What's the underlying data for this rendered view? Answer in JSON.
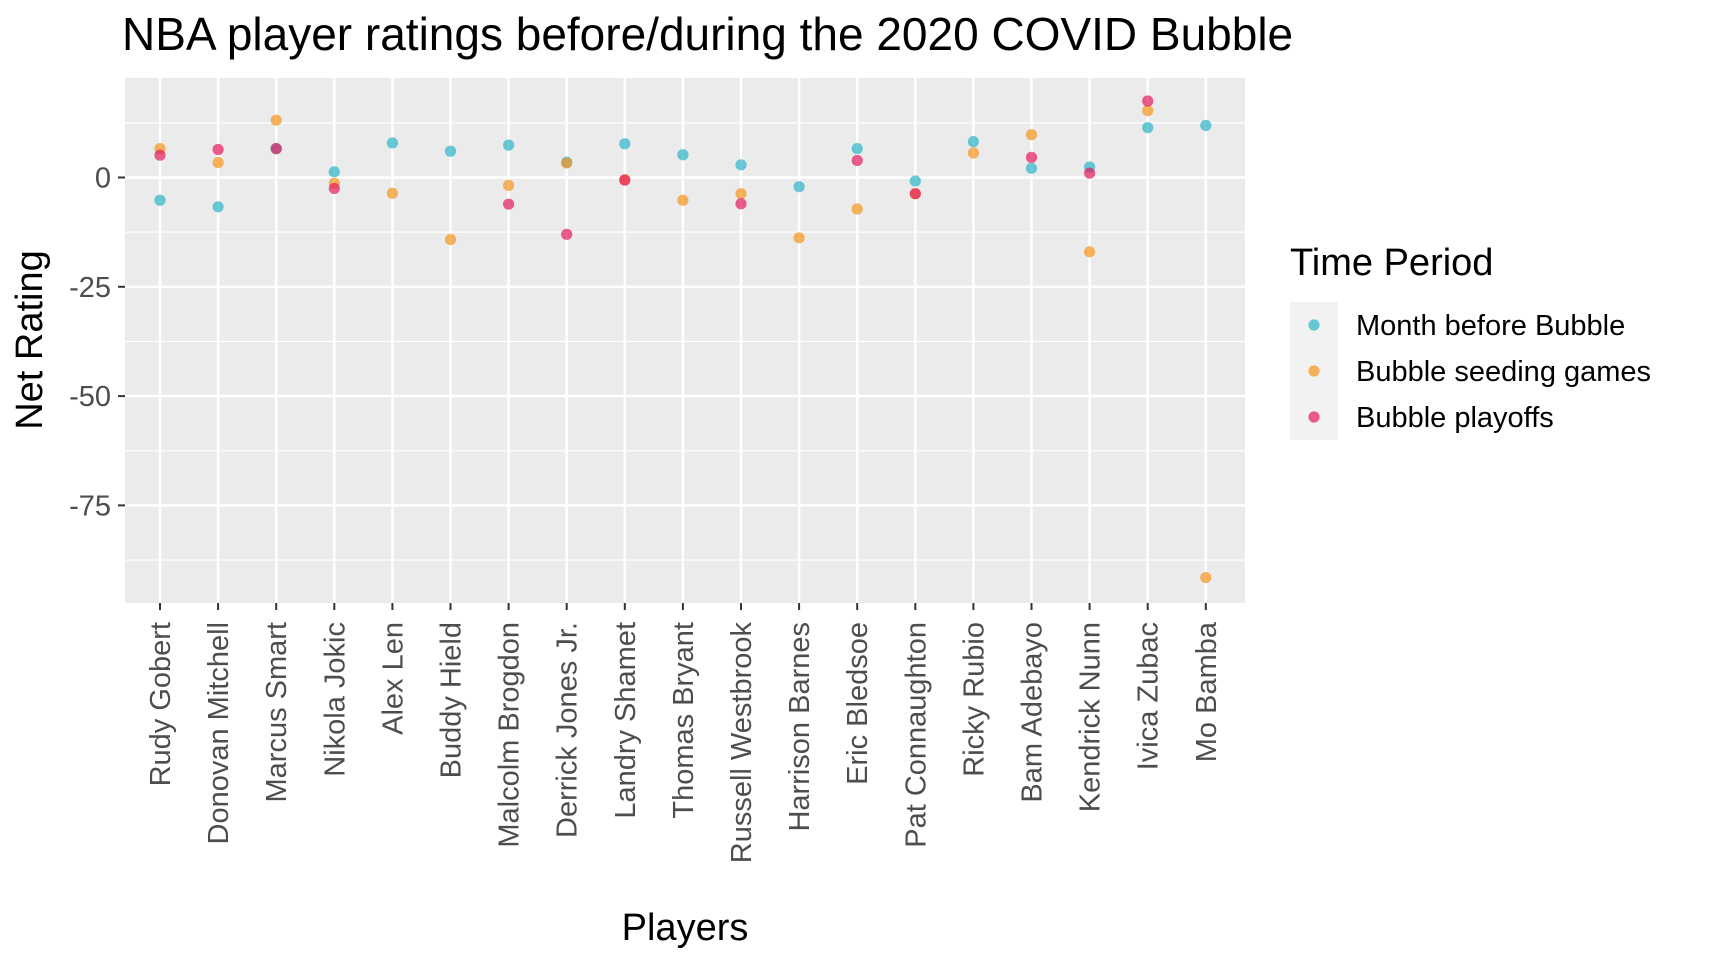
{
  "chart_data": {
    "type": "scatter",
    "title": "NBA player ratings before/during the 2020 COVID Bubble",
    "xlabel": "Players",
    "ylabel": "Net Rating",
    "categories": [
      "Rudy Gobert",
      "Donovan Mitchell",
      "Marcus Smart",
      "Nikola Jokic",
      "Alex Len",
      "Buddy Hield",
      "Malcolm Brogdon",
      "Derrick Jones Jr.",
      "Landry Shamet",
      "Thomas Bryant",
      "Russell Westbrook",
      "Harrison Barnes",
      "Eric Bledsoe",
      "Pat Connaughton",
      "Ricky Rubio",
      "Bam Adebayo",
      "Kendrick Nunn",
      "Ivica Zubac",
      "Mo Bamba"
    ],
    "ylim": [
      -97,
      23
    ],
    "yticks": [
      0,
      -25,
      -50,
      -75
    ],
    "ytick_labels": [
      "0",
      "-25",
      "-50",
      "-75"
    ],
    "grid": true,
    "legend": {
      "title": "Time Period",
      "position": "right"
    },
    "series": [
      {
        "name": "Month before Bubble",
        "color": "#2bb3c8",
        "values": [
          -5.2,
          -6.7,
          6.6,
          1.3,
          7.9,
          6.0,
          7.4,
          3.5,
          7.7,
          5.2,
          2.9,
          -2.1,
          6.6,
          -0.8,
          8.2,
          2.1,
          2.4,
          11.4,
          11.9
        ]
      },
      {
        "name": "Bubble seeding games",
        "color": "#f7941d",
        "values": [
          6.6,
          3.4,
          13.1,
          -1.3,
          -3.6,
          -14.2,
          -1.8,
          3.3,
          -0.5,
          -5.2,
          -3.7,
          -13.8,
          -7.2,
          -3.7,
          5.6,
          9.8,
          -17.0,
          15.3,
          -91.5
        ]
      },
      {
        "name": "Bubble playoffs",
        "color": "#e31a5c",
        "values": [
          5.1,
          6.4,
          6.6,
          -2.5,
          null,
          null,
          -6.1,
          -13.0,
          -0.6,
          null,
          -6.0,
          null,
          3.9,
          -3.7,
          null,
          4.6,
          1.0,
          17.5,
          null
        ]
      }
    ]
  }
}
